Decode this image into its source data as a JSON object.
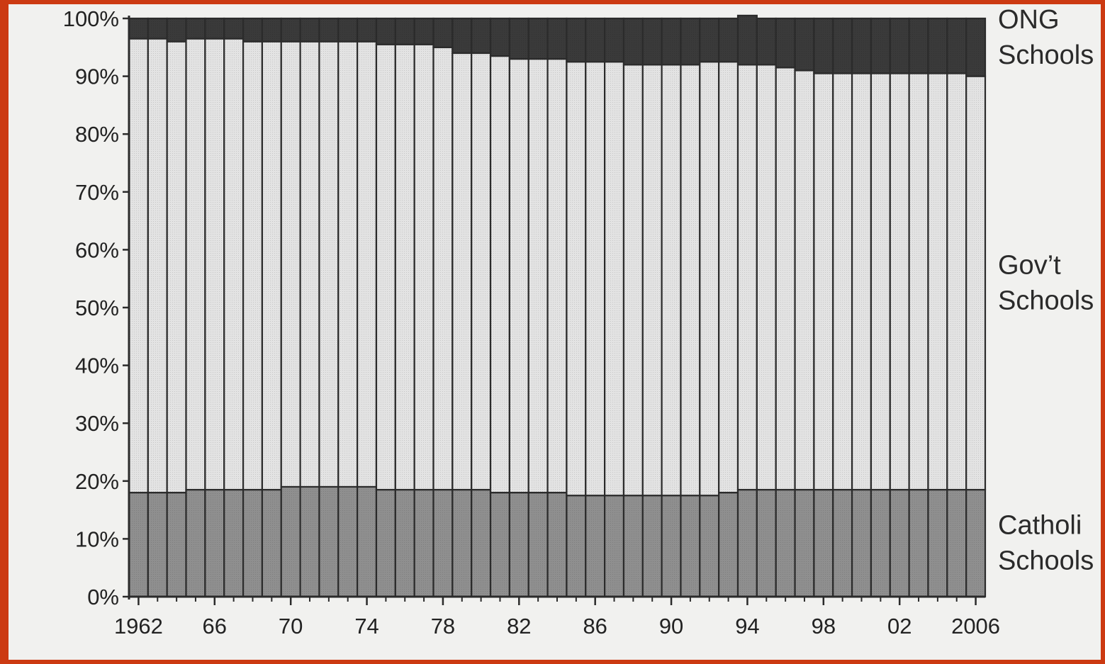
{
  "chart_data": {
    "type": "bar",
    "stacked": true,
    "normalized": true,
    "title": "",
    "xlabel": "",
    "ylabel": "",
    "ylim": [
      0,
      100
    ],
    "y_ticks": [
      "0%",
      "10%",
      "20%",
      "30%",
      "40%",
      "50%",
      "60%",
      "70%",
      "80%",
      "90%",
      "100%"
    ],
    "categories": [
      "1962",
      "1963",
      "1964",
      "1965",
      "1966",
      "1967",
      "1968",
      "1969",
      "1970",
      "1971",
      "1972",
      "1973",
      "1974",
      "1975",
      "1976",
      "1977",
      "1978",
      "1979",
      "1980",
      "1981",
      "1982",
      "1983",
      "1984",
      "1985",
      "1986",
      "1987",
      "1988",
      "1989",
      "1990",
      "1991",
      "1992",
      "1993",
      "1994",
      "1995",
      "1996",
      "1997",
      "1998",
      "1999",
      "2000",
      "2001",
      "2002",
      "2003",
      "2004",
      "2005",
      "2006"
    ],
    "x_tick_labels": [
      {
        "category": "1962",
        "label": "1962"
      },
      {
        "category": "1966",
        "label": "66"
      },
      {
        "category": "1970",
        "label": "70"
      },
      {
        "category": "1974",
        "label": "74"
      },
      {
        "category": "1978",
        "label": "78"
      },
      {
        "category": "1982",
        "label": "82"
      },
      {
        "category": "1986",
        "label": "86"
      },
      {
        "category": "1990",
        "label": "90"
      },
      {
        "category": "1994",
        "label": "94"
      },
      {
        "category": "1998",
        "label": "98"
      },
      {
        "category": "2002",
        "label": "02"
      },
      {
        "category": "2006",
        "label": "2006"
      }
    ],
    "series": [
      {
        "label_lines": [
          "Catholi",
          "Schools"
        ],
        "color": "#8f8f8f",
        "values": [
          18,
          18,
          18,
          18.5,
          18.5,
          18.5,
          18.5,
          18.5,
          19,
          19,
          19,
          19,
          19,
          18.5,
          18.5,
          18.5,
          18.5,
          18.5,
          18.5,
          18,
          18,
          18,
          18,
          17.5,
          17.5,
          17.5,
          17.5,
          17.5,
          17.5,
          17.5,
          17.5,
          18,
          18.5,
          18.5,
          18.5,
          18.5,
          18.5,
          18.5,
          18.5,
          18.5,
          18.5,
          18.5,
          18.5,
          18.5,
          18.5
        ]
      },
      {
        "label_lines": [
          "Gov’t",
          "Schools"
        ],
        "color": "#e3e3e3",
        "values": [
          78.5,
          78.5,
          78,
          78,
          78,
          78,
          77.5,
          77.5,
          77,
          77,
          77,
          77,
          77,
          77,
          77,
          77,
          76.5,
          75.5,
          75.5,
          75.5,
          75,
          75,
          75,
          75,
          75,
          75,
          74.5,
          74.5,
          74.5,
          74.5,
          75,
          74.5,
          73.5,
          73.5,
          73,
          72.5,
          72,
          72,
          72,
          72,
          72,
          72,
          72,
          72,
          71.5
        ]
      },
      {
        "label_lines": [
          "ONG",
          "Schools"
        ],
        "color": "#3a3a3a",
        "values": [
          3.5,
          3.5,
          4,
          3.5,
          3.5,
          3.5,
          4,
          4,
          4,
          4,
          4,
          4,
          4,
          4.5,
          4.5,
          4.5,
          5,
          6,
          6,
          6.5,
          7,
          7,
          7,
          7.5,
          7.5,
          7.5,
          8,
          8,
          8,
          8,
          7.5,
          7.5,
          8.5,
          8,
          8.5,
          9,
          9.5,
          9.5,
          9.5,
          9.5,
          9.5,
          9.5,
          9.5,
          9.5,
          10
        ]
      }
    ],
    "grid": false,
    "legend": "right, inline labels"
  }
}
